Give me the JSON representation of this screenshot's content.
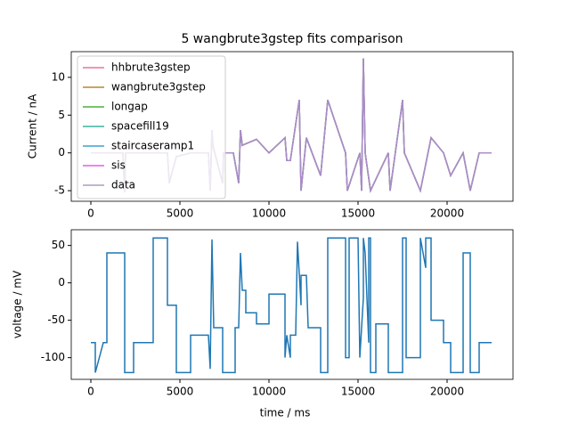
{
  "chart_data": [
    {
      "type": "line",
      "title": "5 wangbrute3gstep fits comparison",
      "ylabel": "Current / nA",
      "x": [
        0,
        1800,
        1900,
        1950,
        2400,
        4300,
        4400,
        4800,
        5600,
        6600,
        6700,
        6800,
        6850,
        7400,
        7450,
        8000,
        8300,
        8400,
        8500,
        9300,
        10000,
        10900,
        11000,
        11200,
        11700,
        11800,
        12100,
        12900,
        13300,
        14300,
        14400,
        15100,
        15200,
        15300,
        15400,
        15700,
        16700,
        16800,
        17500,
        17600,
        18500,
        19100,
        19800,
        20200,
        20900,
        21300,
        21800,
        22500
      ],
      "series": [
        {
          "name": "hhbrute3gstep",
          "color": "#e8779a",
          "values": [
            0,
            0,
            -5.2,
            0,
            0,
            0,
            -4,
            -0.5,
            0,
            0,
            -5,
            3,
            1,
            -4,
            0,
            0,
            -4,
            3,
            1,
            1.8,
            0,
            2,
            -1,
            -1,
            7,
            -5,
            2,
            -3,
            7,
            0,
            -5,
            0,
            -5,
            12.5,
            0,
            -5,
            0,
            -5,
            7,
            0,
            -5,
            2,
            0,
            -3,
            0,
            -5,
            0,
            0
          ]
        },
        {
          "name": "wangbrute3gstep",
          "color": "#b5892c",
          "values": [
            0,
            0,
            -5.2,
            0,
            0,
            0,
            -4,
            -0.5,
            0,
            0,
            -5,
            3,
            1,
            -4,
            0,
            0,
            -4,
            3,
            1,
            1.8,
            0,
            2,
            -1,
            -1,
            7,
            -5,
            2,
            -3,
            7,
            0,
            -5,
            0,
            -5,
            12.5,
            0,
            -5,
            0,
            -5,
            7,
            0,
            -5,
            2,
            0,
            -3,
            0,
            -5,
            0,
            0
          ]
        },
        {
          "name": "longap",
          "color": "#4caf3a",
          "values": [
            0,
            0,
            -5.2,
            0,
            0,
            0,
            -4,
            -0.5,
            0,
            0,
            -5,
            3,
            1,
            -4,
            0,
            0,
            -4,
            3,
            1,
            1.8,
            0,
            2,
            -1,
            -1,
            7,
            -5,
            2,
            -3,
            7,
            0,
            -5,
            0,
            -5,
            12.5,
            0,
            -5,
            0,
            -5,
            7,
            0,
            -5,
            2,
            0,
            -3,
            0,
            -5,
            0,
            0
          ]
        },
        {
          "name": "spacefill19",
          "color": "#3ab3a0",
          "values": [
            0,
            0,
            -5.2,
            0,
            0,
            0,
            -4,
            -0.5,
            0,
            0,
            -5,
            3,
            1,
            -4,
            0,
            0,
            -4,
            3,
            1,
            1.8,
            0,
            2,
            -1,
            -1,
            7,
            -5,
            2,
            -3,
            7,
            0,
            -5,
            0,
            -5,
            12.5,
            0,
            -5,
            0,
            -5,
            7,
            0,
            -5,
            2,
            0,
            -3,
            0,
            -5,
            0,
            0
          ]
        },
        {
          "name": "staircaseramp1",
          "color": "#3aa3d0",
          "values": [
            0,
            0,
            -5.2,
            0,
            0,
            0,
            -4,
            -0.5,
            0,
            0,
            -5,
            3,
            1,
            -4,
            0,
            0,
            -4,
            3,
            1,
            1.8,
            0,
            2,
            -1,
            -1,
            7,
            -5,
            2,
            -3,
            7,
            0,
            -5,
            0,
            -5,
            12.5,
            0,
            -5,
            0,
            -5,
            7,
            0,
            -5,
            2,
            0,
            -3,
            0,
            -5,
            0,
            0
          ]
        },
        {
          "name": "sis",
          "color": "#e85ae8",
          "values": [
            0,
            0,
            -5.2,
            0,
            0,
            0,
            -4,
            -0.5,
            0,
            0,
            -5,
            3,
            1,
            -4,
            0,
            0,
            -4,
            3,
            1,
            1.8,
            0,
            2,
            -1,
            -1,
            7,
            -5,
            2,
            -3,
            7,
            0,
            -5,
            0,
            -5,
            12.5,
            0,
            -5,
            0,
            -5,
            7,
            0,
            -5,
            2,
            0,
            -3,
            0,
            -5,
            0,
            0
          ]
        },
        {
          "name": "data",
          "color": "#b09ac0",
          "values": [
            0,
            0,
            -5.2,
            0,
            0,
            0,
            -4,
            -0.5,
            0,
            0,
            -5,
            3,
            1,
            -4,
            0,
            0,
            -4,
            3,
            1,
            1.8,
            0,
            2,
            -1,
            -1,
            7,
            -5,
            2,
            -3,
            7,
            0,
            -5,
            0,
            -5,
            12.5,
            0,
            -5,
            0,
            -5,
            7,
            0,
            -5,
            2,
            0,
            -3,
            0,
            -5,
            0,
            0
          ]
        }
      ],
      "xlim": [
        -1100,
        23700
      ],
      "xticks": [
        0,
        5000,
        10000,
        15000,
        20000
      ],
      "ylim": [
        -6.4,
        13.4
      ],
      "yticks": [
        -5,
        0,
        5,
        10
      ],
      "legend": "upper-left"
    },
    {
      "type": "line",
      "xlabel": "time / ms",
      "ylabel": "voltage / mV",
      "x": [
        0,
        250,
        250,
        700,
        900,
        900,
        1900,
        1900,
        2400,
        2400,
        3500,
        3500,
        4300,
        4300,
        4800,
        4800,
        5600,
        5600,
        6600,
        6700,
        6800,
        6900,
        7400,
        7400,
        8100,
        8100,
        8300,
        8400,
        8500,
        8700,
        8700,
        9300,
        9300,
        10000,
        10000,
        10900,
        10900,
        11000,
        11200,
        11200,
        11500,
        11600,
        11800,
        11800,
        12100,
        12200,
        12900,
        12900,
        13300,
        13300,
        14300,
        14300,
        14500,
        14500,
        15000,
        15100,
        15300,
        15300,
        15400,
        15600,
        15600,
        15700,
        15700,
        16000,
        16000,
        16700,
        16700,
        17500,
        17500,
        17700,
        17700,
        18500,
        18500,
        18800,
        18800,
        19100,
        19100,
        19800,
        19800,
        20200,
        20200,
        20900,
        20900,
        21300,
        21300,
        21800,
        21800,
        22500
      ],
      "series": [
        {
          "name": "voltage",
          "color": "#1f77b4",
          "values": [
            -80,
            -80,
            -120,
            -80,
            -80,
            40,
            40,
            -120,
            -120,
            -80,
            -80,
            60,
            60,
            -30,
            -30,
            -120,
            -120,
            -70,
            -70,
            -115,
            58,
            -60,
            -60,
            -120,
            -120,
            -60,
            -60,
            40,
            -10,
            -10,
            -40,
            -40,
            -55,
            -55,
            -15,
            -15,
            -100,
            -70,
            -100,
            -70,
            -70,
            55,
            -30,
            10,
            10,
            -60,
            -60,
            -120,
            -120,
            60,
            60,
            -100,
            -100,
            60,
            60,
            -100,
            -20,
            60,
            40,
            -80,
            60,
            60,
            -120,
            -120,
            -55,
            -55,
            -120,
            -120,
            60,
            60,
            -100,
            -100,
            60,
            20,
            60,
            60,
            -50,
            -50,
            -80,
            -80,
            -120,
            -120,
            40,
            40,
            -120,
            -120,
            -80,
            -80
          ]
        }
      ],
      "xlim": [
        -1100,
        23700
      ],
      "xticks": [
        0,
        5000,
        10000,
        15000,
        20000
      ],
      "ylim": [
        -129,
        71
      ],
      "yticks": [
        -100,
        -50,
        0,
        50
      ]
    }
  ]
}
